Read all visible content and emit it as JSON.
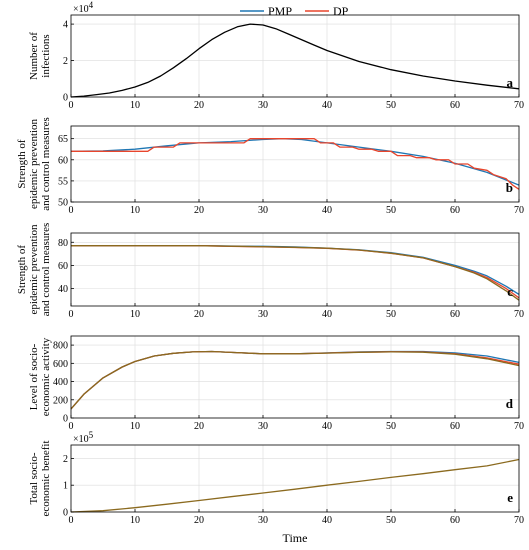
{
  "legend": {
    "items": [
      {
        "label": "PMP",
        "color": "#1f77b4"
      },
      {
        "label": "DP",
        "color": "#e8452c"
      }
    ]
  },
  "xlabel": "Time",
  "chart_data": [
    {
      "type": "line",
      "letter": "a",
      "ylabel": [
        "Number of",
        "infections"
      ],
      "exponent": {
        "base": "×10",
        "power": "4"
      },
      "xlim": [
        0,
        70
      ],
      "ylim": [
        0,
        45000
      ],
      "xticks": [
        0,
        10,
        20,
        30,
        40,
        50,
        60,
        70
      ],
      "yticks": [
        0,
        20000,
        40000
      ],
      "ytick_labels": [
        "0",
        "2",
        "4"
      ],
      "grid": true,
      "series": [
        {
          "color": "#000000",
          "x": [
            0,
            2,
            4,
            6,
            8,
            10,
            12,
            14,
            16,
            18,
            20,
            22,
            24,
            26,
            28,
            30,
            32,
            34,
            36,
            38,
            40,
            45,
            50,
            55,
            60,
            65,
            70
          ],
          "y": [
            0,
            500,
            1300,
            2200,
            3600,
            5500,
            8000,
            11500,
            16000,
            21000,
            26500,
            31500,
            35500,
            38500,
            40000,
            39500,
            37500,
            34500,
            31500,
            28500,
            25500,
            19500,
            15000,
            11500,
            8800,
            6500,
            4500
          ]
        }
      ]
    },
    {
      "type": "line",
      "letter": "b",
      "ylabel": [
        "Strength of",
        "epidemic prevention",
        "and control measures"
      ],
      "xlim": [
        0,
        70
      ],
      "ylim": [
        50,
        68
      ],
      "xticks": [
        0,
        10,
        20,
        30,
        40,
        50,
        60,
        70
      ],
      "yticks": [
        50,
        55,
        60,
        65
      ],
      "ytick_labels": [
        "50",
        "55",
        "60",
        "65"
      ],
      "grid": true,
      "series": [
        {
          "name": "PMP",
          "color": "#1f77b4",
          "x": [
            0,
            5,
            10,
            15,
            20,
            25,
            30,
            33,
            36,
            40,
            45,
            50,
            55,
            60,
            65,
            70
          ],
          "y": [
            62,
            62.1,
            62.5,
            63.3,
            64,
            64.3,
            64.8,
            65,
            64.8,
            64,
            63,
            62,
            60.8,
            59.2,
            57,
            54
          ]
        },
        {
          "name": "DP",
          "color": "#e8452c",
          "x": [
            0,
            5,
            10,
            12,
            13,
            16,
            17,
            20,
            25,
            27,
            28,
            32,
            34,
            36,
            38,
            39,
            41,
            42,
            44,
            45,
            47,
            48,
            50,
            51,
            53,
            54,
            56,
            57,
            59,
            60,
            62,
            63,
            65,
            66,
            68,
            69,
            70
          ],
          "y": [
            62,
            62,
            62,
            62,
            63,
            63,
            64,
            64,
            64,
            64,
            65,
            65,
            65,
            65,
            65,
            64,
            64,
            63,
            63,
            62.5,
            62.5,
            62,
            62,
            61,
            61,
            60.5,
            60.5,
            60,
            60,
            59,
            59,
            58,
            57.5,
            56.5,
            55.5,
            54,
            53
          ]
        }
      ]
    },
    {
      "type": "line",
      "letter": "c",
      "ylabel": [
        "Strength of",
        "epidemic prevention",
        "and control measures"
      ],
      "xlim": [
        0,
        70
      ],
      "ylim": [
        25,
        88
      ],
      "xticks": [
        0,
        10,
        20,
        30,
        40,
        50,
        60,
        70
      ],
      "yticks": [
        40,
        60,
        80
      ],
      "ytick_labels": [
        "40",
        "60",
        "80"
      ],
      "grid": true,
      "series": [
        {
          "name": "PMP",
          "color": "#1f77b4",
          "x": [
            0,
            5,
            10,
            15,
            20,
            25,
            30,
            35,
            40,
            45,
            50,
            55,
            60,
            63,
            65,
            68,
            70
          ],
          "y": [
            77,
            77,
            77,
            77,
            77,
            76.8,
            76.5,
            76,
            75,
            73.5,
            71,
            67,
            60,
            55,
            51,
            42,
            35
          ]
        },
        {
          "name": "DP",
          "color": "#e8452c",
          "x": [
            0,
            5,
            10,
            15,
            20,
            25,
            30,
            35,
            40,
            45,
            50,
            55,
            60,
            63,
            65,
            68,
            70
          ],
          "y": [
            77,
            77,
            77,
            77,
            77,
            76.5,
            76,
            75.5,
            74.8,
            73.2,
            70.5,
            66.5,
            59,
            54,
            49.5,
            40,
            32
          ]
        },
        {
          "name": "",
          "color": "#8b6a1f",
          "x": [
            0,
            5,
            10,
            15,
            20,
            25,
            30,
            35,
            40,
            45,
            50,
            55,
            60,
            63,
            65,
            68,
            70
          ],
          "y": [
            77,
            77,
            77,
            77,
            77,
            76.6,
            76.2,
            75.7,
            74.9,
            73.3,
            70.6,
            66.6,
            59,
            53.5,
            48.5,
            38,
            30
          ]
        }
      ]
    },
    {
      "type": "line",
      "letter": "d",
      "ylabel": [
        "Level of socio-",
        "economic activity"
      ],
      "xlim": [
        0,
        70
      ],
      "ylim": [
        0,
        900
      ],
      "xticks": [
        0,
        10,
        20,
        30,
        40,
        50,
        60,
        70
      ],
      "yticks": [
        0,
        200,
        400,
        600,
        800
      ],
      "ytick_labels": [
        "0",
        "200",
        "400",
        "600",
        "800"
      ],
      "grid": true,
      "series": [
        {
          "name": "PMP",
          "color": "#1f77b4",
          "x": [
            0,
            2,
            5,
            8,
            10,
            13,
            16,
            19,
            22,
            25,
            30,
            35,
            40,
            45,
            50,
            55,
            60,
            65,
            70
          ],
          "y": [
            100,
            260,
            440,
            560,
            620,
            680,
            710,
            725,
            730,
            720,
            705,
            705,
            715,
            725,
            730,
            730,
            715,
            680,
            610
          ]
        },
        {
          "name": "DP",
          "color": "#e8452c",
          "x": [
            0,
            2,
            5,
            8,
            10,
            13,
            16,
            19,
            22,
            25,
            30,
            35,
            40,
            45,
            50,
            55,
            60,
            65,
            70
          ],
          "y": [
            100,
            260,
            440,
            560,
            620,
            680,
            710,
            725,
            730,
            720,
            705,
            705,
            713,
            722,
            727,
            725,
            705,
            660,
            590
          ]
        },
        {
          "name": "",
          "color": "#8b6a1f",
          "x": [
            0,
            2,
            5,
            8,
            10,
            13,
            16,
            19,
            22,
            25,
            30,
            35,
            40,
            45,
            50,
            55,
            60,
            65,
            70
          ],
          "y": [
            100,
            260,
            440,
            560,
            620,
            680,
            710,
            725,
            730,
            720,
            705,
            705,
            712,
            721,
            726,
            722,
            700,
            650,
            575
          ]
        }
      ]
    },
    {
      "type": "line",
      "letter": "e",
      "ylabel": [
        "Total socio-",
        "economic benefit"
      ],
      "exponent": {
        "base": "×10",
        "power": "5"
      },
      "xlim": [
        0,
        70
      ],
      "ylim": [
        0,
        250000
      ],
      "xticks": [
        0,
        10,
        20,
        30,
        40,
        50,
        60,
        70
      ],
      "yticks": [
        0,
        100000,
        200000
      ],
      "ytick_labels": [
        "0",
        "1",
        "2"
      ],
      "grid": true,
      "series": [
        {
          "name": "",
          "color": "#8b6a1f",
          "x": [
            0,
            5,
            10,
            15,
            20,
            25,
            30,
            35,
            40,
            45,
            50,
            55,
            60,
            65,
            70
          ],
          "y": [
            0,
            5000,
            16000,
            29000,
            43000,
            57000,
            71000,
            85000,
            100000,
            114000,
            129000,
            143000,
            158000,
            172000,
            196000
          ]
        }
      ]
    }
  ]
}
